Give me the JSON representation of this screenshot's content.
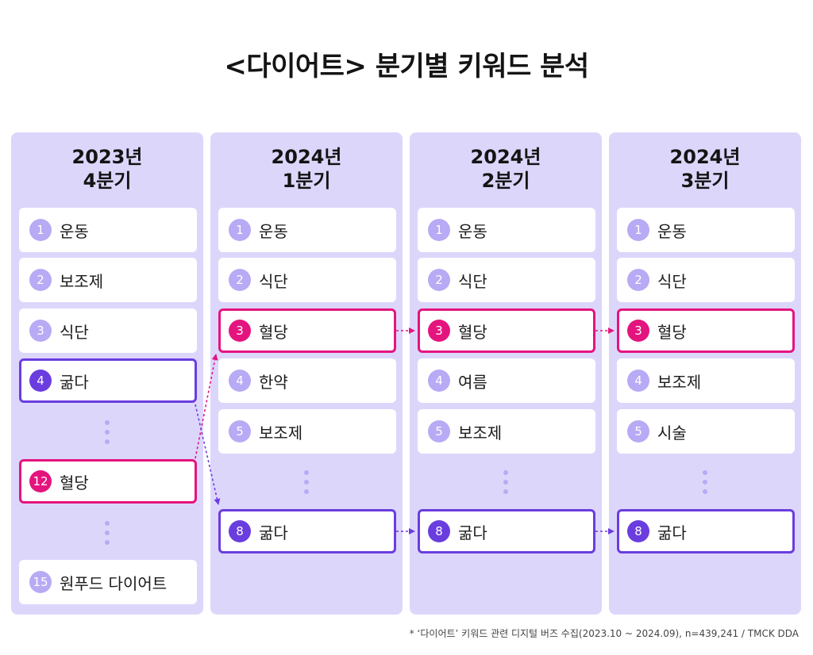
{
  "title": "<다이어트> 분기별 키워드 분석",
  "colors": {
    "column_bg": "#ddd6fb",
    "badge_default": "#b8aaf4",
    "highlight_pink": "#e4147e",
    "highlight_purple": "#6a3ddf"
  },
  "columns": [
    {
      "year": "2023년",
      "quarter": "4분기",
      "items": [
        {
          "rank": "1",
          "keyword": "운동"
        },
        {
          "rank": "2",
          "keyword": "보조제"
        },
        {
          "rank": "3",
          "keyword": "식단"
        },
        {
          "rank": "4",
          "keyword": "굶다",
          "highlight": "purple"
        },
        {
          "rank": "12",
          "keyword": "혈당",
          "highlight": "pink"
        },
        {
          "rank": "15",
          "keyword": "원푸드 다이어트"
        }
      ]
    },
    {
      "year": "2024년",
      "quarter": "1분기",
      "items": [
        {
          "rank": "1",
          "keyword": "운동"
        },
        {
          "rank": "2",
          "keyword": "식단"
        },
        {
          "rank": "3",
          "keyword": "혈당",
          "highlight": "pink"
        },
        {
          "rank": "4",
          "keyword": "한약"
        },
        {
          "rank": "5",
          "keyword": "보조제"
        },
        {
          "rank": "8",
          "keyword": "굶다",
          "highlight": "purple"
        }
      ]
    },
    {
      "year": "2024년",
      "quarter": "2분기",
      "items": [
        {
          "rank": "1",
          "keyword": "운동"
        },
        {
          "rank": "2",
          "keyword": "식단"
        },
        {
          "rank": "3",
          "keyword": "혈당",
          "highlight": "pink"
        },
        {
          "rank": "4",
          "keyword": "여름"
        },
        {
          "rank": "5",
          "keyword": "보조제"
        },
        {
          "rank": "8",
          "keyword": "굶다",
          "highlight": "purple"
        }
      ]
    },
    {
      "year": "2024년",
      "quarter": "3분기",
      "items": [
        {
          "rank": "1",
          "keyword": "운동"
        },
        {
          "rank": "2",
          "keyword": "식단"
        },
        {
          "rank": "3",
          "keyword": "혈당",
          "highlight": "pink"
        },
        {
          "rank": "4",
          "keyword": "보조제"
        },
        {
          "rank": "5",
          "keyword": "시술"
        },
        {
          "rank": "8",
          "keyword": "굶다",
          "highlight": "purple"
        }
      ]
    }
  ],
  "footnote": "* ‘다이어트’ 키워드 관련 디지털 버즈 수집(2023.10 ~ 2024.09), n=439,241 / TMCK DDA"
}
